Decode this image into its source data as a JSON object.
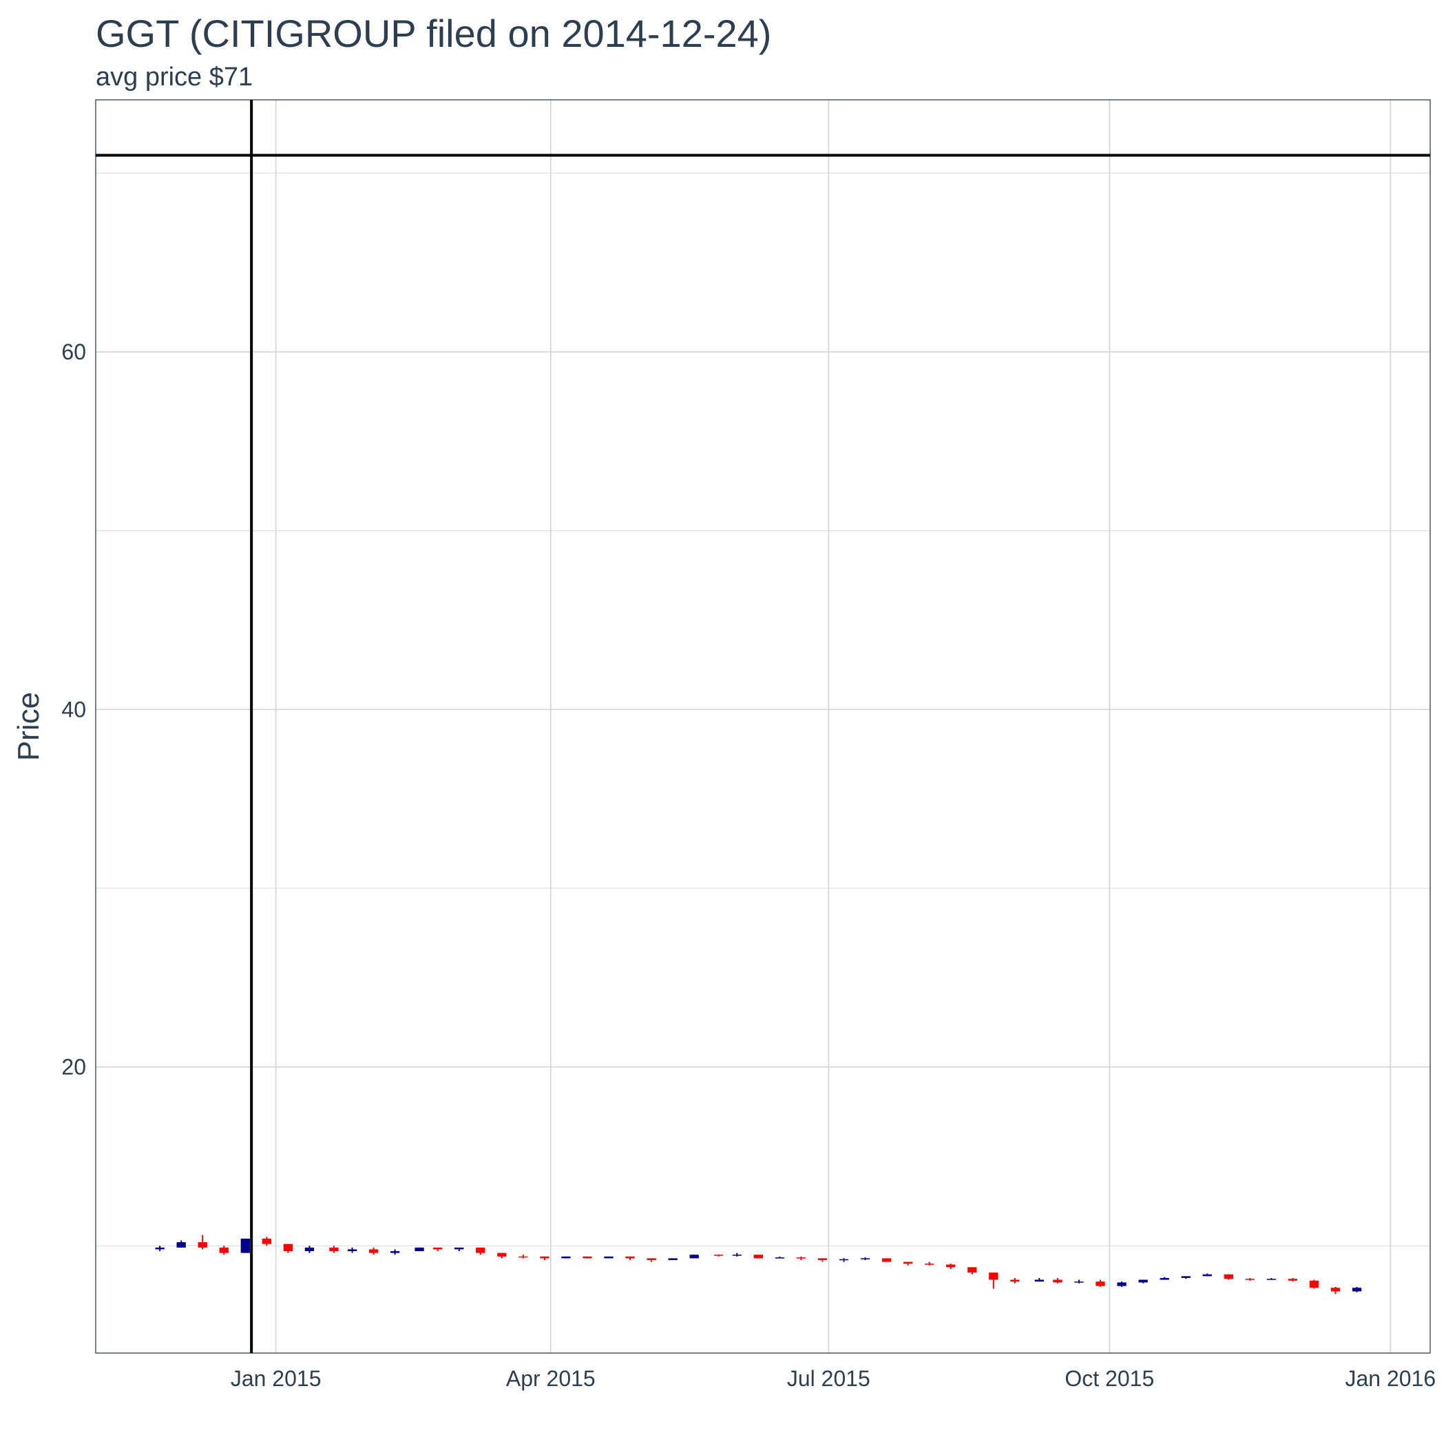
{
  "chart_data": {
    "type": "candlestick",
    "title": "GGT (CITIGROUP filed on 2014-12-24)",
    "subtitle": "avg price $71",
    "y_label": "Price",
    "up_color": "#00008b",
    "down_color": "#ff0000",
    "xlim": [
      "2014-11-03",
      "2016-01-14"
    ],
    "xticks": [
      {
        "value": "2015-01-01",
        "label": "Jan 2015"
      },
      {
        "value": "2015-04-01",
        "label": "Apr 2015"
      },
      {
        "value": "2015-07-01",
        "label": "Jul 2015"
      },
      {
        "value": "2015-10-01",
        "label": "Oct 2015"
      },
      {
        "value": "2016-01-01",
        "label": "Jan 2016"
      }
    ],
    "ylim": [
      4,
      74.1
    ],
    "yticks": [
      20,
      40,
      60
    ],
    "yminor": [
      10,
      30,
      50,
      70
    ],
    "grid": true,
    "vline": "2014-12-24",
    "hline": 71,
    "x": [
      "2014-11-24",
      "2014-12-01",
      "2014-12-08",
      "2014-12-15",
      "2014-12-22",
      "2014-12-29",
      "2015-01-05",
      "2015-01-12",
      "2015-01-20",
      "2015-01-26",
      "2015-02-02",
      "2015-02-09",
      "2015-02-17",
      "2015-02-23",
      "2015-03-02",
      "2015-03-09",
      "2015-03-16",
      "2015-03-23",
      "2015-03-30",
      "2015-04-06",
      "2015-04-13",
      "2015-04-20",
      "2015-04-27",
      "2015-05-04",
      "2015-05-11",
      "2015-05-18",
      "2015-05-26",
      "2015-06-01",
      "2015-06-08",
      "2015-06-15",
      "2015-06-22",
      "2015-06-29",
      "2015-07-06",
      "2015-07-13",
      "2015-07-20",
      "2015-07-27",
      "2015-08-03",
      "2015-08-10",
      "2015-08-17",
      "2015-08-24",
      "2015-08-31",
      "2015-09-08",
      "2015-09-14",
      "2015-09-21",
      "2015-09-28",
      "2015-10-05",
      "2015-10-12",
      "2015-10-19",
      "2015-10-26",
      "2015-11-02",
      "2015-11-09",
      "2015-11-16",
      "2015-11-23",
      "2015-11-30",
      "2015-12-07",
      "2015-12-14",
      "2015-12-21"
    ],
    "open": [
      9.8,
      9.9,
      10.2,
      9.9,
      9.6,
      10.4,
      10.1,
      9.7,
      9.9,
      9.7,
      9.8,
      9.6,
      9.7,
      9.9,
      9.8,
      9.9,
      9.6,
      9.4,
      9.4,
      9.3,
      9.4,
      9.3,
      9.4,
      9.3,
      9.2,
      9.3,
      9.5,
      9.45,
      9.5,
      9.3,
      9.35,
      9.3,
      9.2,
      9.25,
      9.3,
      9.1,
      9.0,
      8.95,
      8.8,
      8.5,
      8.1,
      8.0,
      8.1,
      7.95,
      8.0,
      7.75,
      7.95,
      8.1,
      8.2,
      8.3,
      8.4,
      8.15,
      8.1,
      8.15,
      8.05,
      7.65,
      7.45
    ],
    "high": [
      10.0,
      10.3,
      10.6,
      10.0,
      10.4,
      10.5,
      10.1,
      10.0,
      10.0,
      9.9,
      9.9,
      9.8,
      9.9,
      9.9,
      9.9,
      9.9,
      9.6,
      9.5,
      9.4,
      9.4,
      9.4,
      9.4,
      9.4,
      9.3,
      9.3,
      9.5,
      9.5,
      9.6,
      9.5,
      9.4,
      9.4,
      9.3,
      9.3,
      9.35,
      9.3,
      9.1,
      9.1,
      9.0,
      8.8,
      8.5,
      8.2,
      8.2,
      8.2,
      8.1,
      8.1,
      8.0,
      8.1,
      8.25,
      8.3,
      8.45,
      8.4,
      8.2,
      8.2,
      8.2,
      8.1,
      7.7,
      7.7
    ],
    "low": [
      9.7,
      9.9,
      9.8,
      9.5,
      9.6,
      10.0,
      9.6,
      9.6,
      9.6,
      9.6,
      9.5,
      9.5,
      9.7,
      9.7,
      9.7,
      9.5,
      9.3,
      9.3,
      9.2,
      9.3,
      9.3,
      9.3,
      9.2,
      9.1,
      9.2,
      9.3,
      9.4,
      9.4,
      9.3,
      9.3,
      9.2,
      9.1,
      9.1,
      9.2,
      9.1,
      8.9,
      8.9,
      8.7,
      8.4,
      7.6,
      7.9,
      8.0,
      7.9,
      7.9,
      7.7,
      7.7,
      7.9,
      8.1,
      8.15,
      8.3,
      8.1,
      8.05,
      8.1,
      8.0,
      7.6,
      7.3,
      7.4
    ],
    "close": [
      9.9,
      10.2,
      9.9,
      9.6,
      10.4,
      10.1,
      9.7,
      9.9,
      9.7,
      9.8,
      9.6,
      9.7,
      9.9,
      9.8,
      9.9,
      9.6,
      9.4,
      9.35,
      9.3,
      9.4,
      9.3,
      9.4,
      9.3,
      9.2,
      9.3,
      9.5,
      9.45,
      9.5,
      9.3,
      9.35,
      9.3,
      9.2,
      9.25,
      9.3,
      9.1,
      9.0,
      8.95,
      8.8,
      8.5,
      8.1,
      8.0,
      8.1,
      7.95,
      8.0,
      7.75,
      7.95,
      8.1,
      8.2,
      8.3,
      8.4,
      8.15,
      8.1,
      8.15,
      8.05,
      7.65,
      7.45,
      7.65
    ]
  }
}
